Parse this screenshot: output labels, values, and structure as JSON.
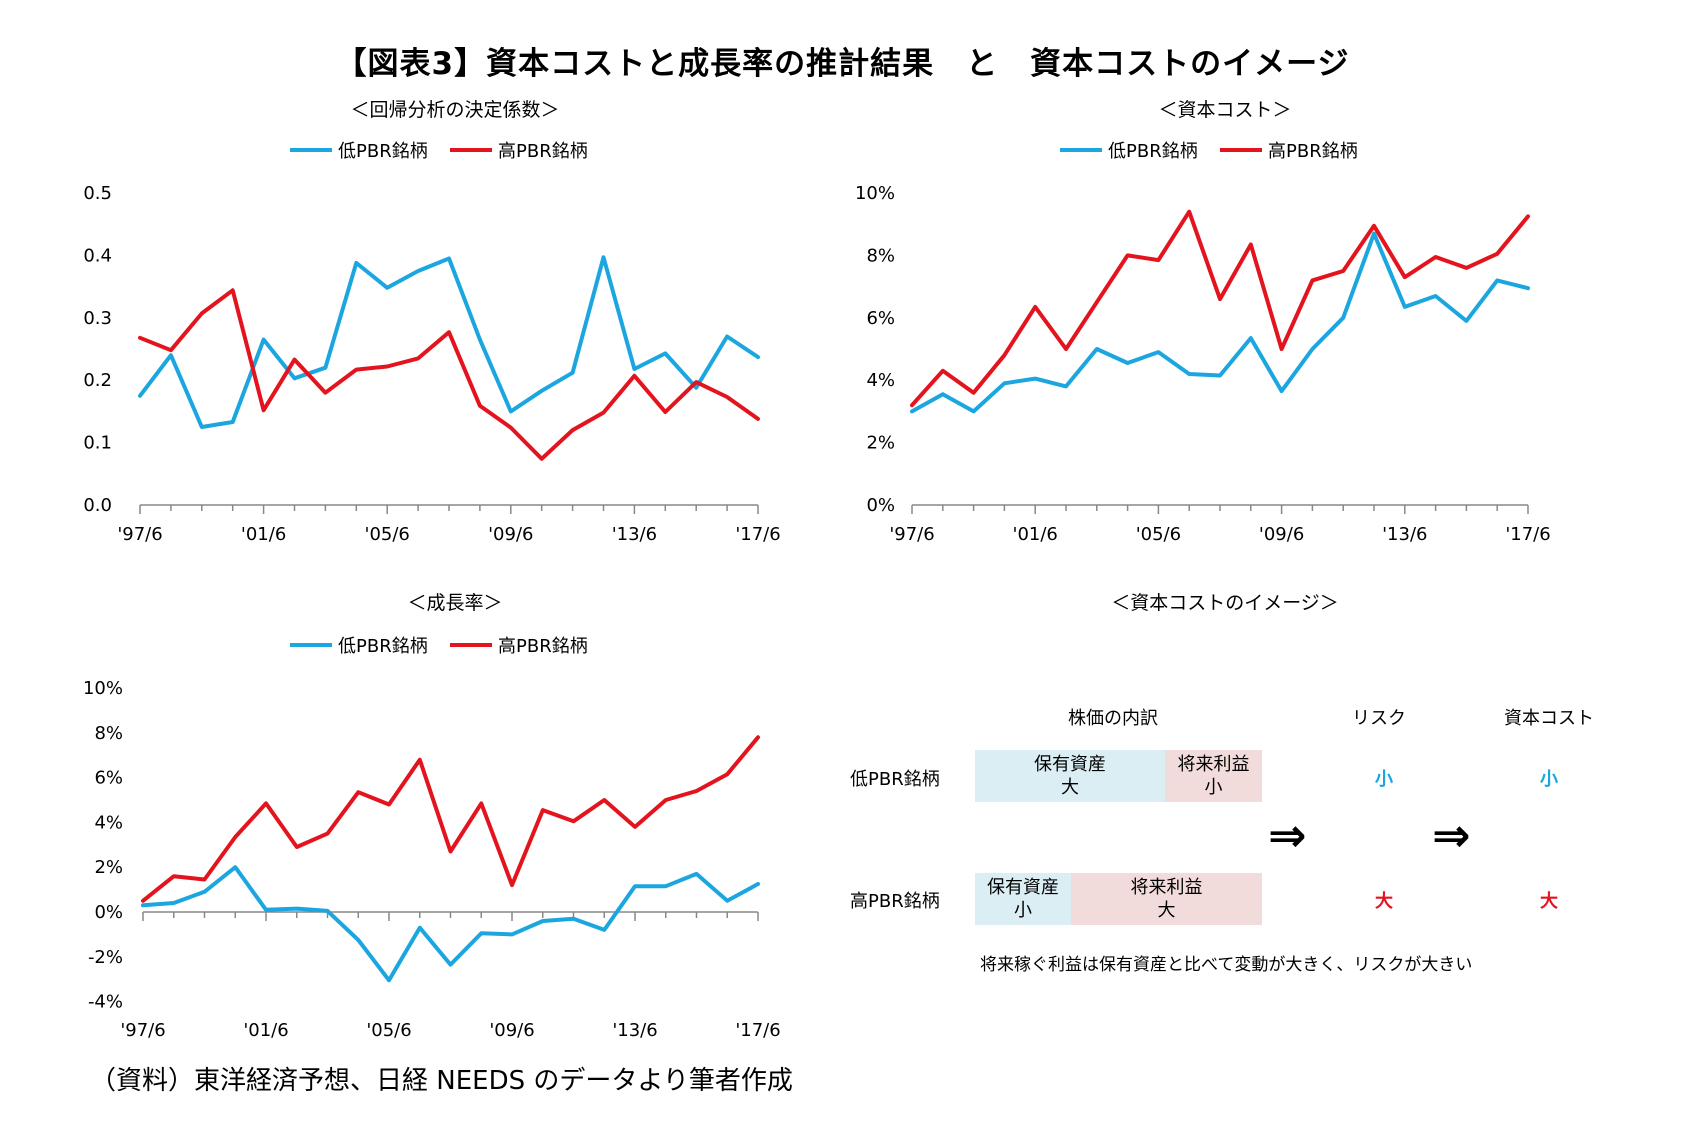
{
  "title": "【図表3】資本コストと成長率の推計結果　と　資本コストのイメージ",
  "source": "（資料）東洋経済予想、日経 NEEDS のデータより筆者作成",
  "colors": {
    "low": "#1ca6e0",
    "high": "#e3141e"
  },
  "chart_data": [
    {
      "id": "r2",
      "type": "line",
      "title": "＜回帰分析の決定係数＞",
      "x": [
        "'97/6",
        "'98/6",
        "'99/6",
        "'00/6",
        "'01/6",
        "'02/6",
        "'03/6",
        "'04/6",
        "'05/6",
        "'06/6",
        "'07/6",
        "'08/6",
        "'09/6",
        "'10/6",
        "'11/6",
        "'12/6",
        "'13/6",
        "'14/6",
        "'15/6",
        "'16/6",
        "'17/6"
      ],
      "xticklabels": [
        "'97/6",
        "'01/6",
        "'05/6",
        "'09/6",
        "'13/6",
        "'17/6"
      ],
      "yticklabels": [
        "0.0",
        "0.1",
        "0.2",
        "0.3",
        "0.4",
        "0.5"
      ],
      "ylim": [
        0,
        0.5
      ],
      "series": [
        {
          "name": "低PBR銘柄",
          "values": [
            0.175,
            0.24,
            0.125,
            0.133,
            0.265,
            0.203,
            0.22,
            0.388,
            0.348,
            0.375,
            0.395,
            0.265,
            0.15,
            0.183,
            0.212,
            0.397,
            0.218,
            0.243,
            0.188,
            0.27,
            0.237
          ]
        },
        {
          "name": "高PBR銘柄",
          "values": [
            0.268,
            0.248,
            0.307,
            0.344,
            0.152,
            0.233,
            0.18,
            0.217,
            0.222,
            0.235,
            0.277,
            0.159,
            0.124,
            0.074,
            0.12,
            0.148,
            0.207,
            0.149,
            0.197,
            0.173,
            0.138
          ]
        }
      ]
    },
    {
      "id": "coc",
      "type": "line",
      "title": "＜資本コスト＞",
      "x": [
        "'97/6",
        "'98/6",
        "'99/6",
        "'00/6",
        "'01/6",
        "'02/6",
        "'03/6",
        "'04/6",
        "'05/6",
        "'06/6",
        "'07/6",
        "'08/6",
        "'09/6",
        "'10/6",
        "'11/6",
        "'12/6",
        "'13/6",
        "'14/6",
        "'15/6",
        "'16/6",
        "'17/6"
      ],
      "xticklabels": [
        "'97/6",
        "'01/6",
        "'05/6",
        "'09/6",
        "'13/6",
        "'17/6"
      ],
      "yticklabels": [
        "0%",
        "2%",
        "4%",
        "6%",
        "8%",
        "10%"
      ],
      "ylim": [
        0,
        10
      ],
      "series": [
        {
          "name": "低PBR銘柄",
          "values": [
            3.0,
            3.55,
            3.0,
            3.9,
            4.05,
            3.8,
            5.0,
            4.55,
            4.9,
            4.2,
            4.15,
            5.35,
            3.65,
            5.0,
            6.0,
            8.7,
            6.35,
            6.7,
            5.9,
            7.2,
            6.95
          ]
        },
        {
          "name": "高PBR銘柄",
          "values": [
            3.2,
            4.3,
            3.6,
            4.8,
            6.35,
            5.0,
            6.5,
            8.0,
            7.85,
            9.4,
            6.6,
            8.35,
            5.0,
            7.2,
            7.5,
            8.95,
            7.3,
            7.95,
            7.6,
            8.05,
            9.25
          ]
        }
      ]
    },
    {
      "id": "growth",
      "type": "line",
      "title": "＜成長率＞",
      "x": [
        "'97/6",
        "'98/6",
        "'99/6",
        "'00/6",
        "'01/6",
        "'02/6",
        "'03/6",
        "'04/6",
        "'05/6",
        "'06/6",
        "'07/6",
        "'08/6",
        "'09/6",
        "'10/6",
        "'11/6",
        "'12/6",
        "'13/6",
        "'14/6",
        "'15/6",
        "'16/6",
        "'17/6"
      ],
      "xticklabels": [
        "'97/6",
        "'01/6",
        "'05/6",
        "'09/6",
        "'13/6",
        "'17/6"
      ],
      "yticklabels": [
        "-4%",
        "-2%",
        "0%",
        "2%",
        "4%",
        "6%",
        "8%",
        "10%"
      ],
      "ylim": [
        -4,
        10
      ],
      "series": [
        {
          "name": "低PBR銘柄",
          "values": [
            0.3,
            0.4,
            0.9,
            2.0,
            0.1,
            0.15,
            0.05,
            -1.25,
            -3.05,
            -0.7,
            -2.35,
            -0.95,
            -1.0,
            -0.4,
            -0.3,
            -0.8,
            1.15,
            1.15,
            1.7,
            0.5,
            1.25
          ]
        },
        {
          "name": "高PBR銘柄",
          "values": [
            0.5,
            1.6,
            1.45,
            3.35,
            4.85,
            2.9,
            3.5,
            5.35,
            4.8,
            6.8,
            2.7,
            4.85,
            1.2,
            4.55,
            4.05,
            5.0,
            3.8,
            5.0,
            5.4,
            6.15,
            7.8
          ]
        }
      ]
    }
  ],
  "image_panel": {
    "title": "＜資本コストのイメージ＞",
    "col_breakdown": "株価の内訳",
    "col_risk": "リスク",
    "col_coc": "資本コスト",
    "rows": [
      {
        "label": "低PBR銘柄",
        "asset": "保有資産",
        "asset_size": "大",
        "earn": "将来利益",
        "earn_size": "小",
        "risk": "小",
        "coc": "小"
      },
      {
        "label": "高PBR銘柄",
        "asset": "保有資産",
        "asset_size": "小",
        "earn": "将来利益",
        "earn_size": "大",
        "risk": "大",
        "coc": "大"
      }
    ],
    "arrow": "⇒",
    "note": "将来稼ぐ利益は保有資産と比べて変動が大きく、リスクが大きい"
  }
}
